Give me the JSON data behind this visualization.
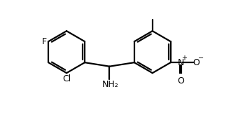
{
  "background": "#ffffff",
  "bond_color": "#000000",
  "bond_width": 1.6,
  "text_color": "#000000",
  "font_size": 9.0,
  "figure_width": 3.3,
  "figure_height": 1.74,
  "dpi": 100,
  "LCX": 2.55,
  "LCY": 3.45,
  "R": 1.05,
  "RCX": 6.85,
  "RCY": 3.45,
  "cc": [
    4.7,
    2.73
  ],
  "nh2": [
    4.7,
    2.1
  ]
}
